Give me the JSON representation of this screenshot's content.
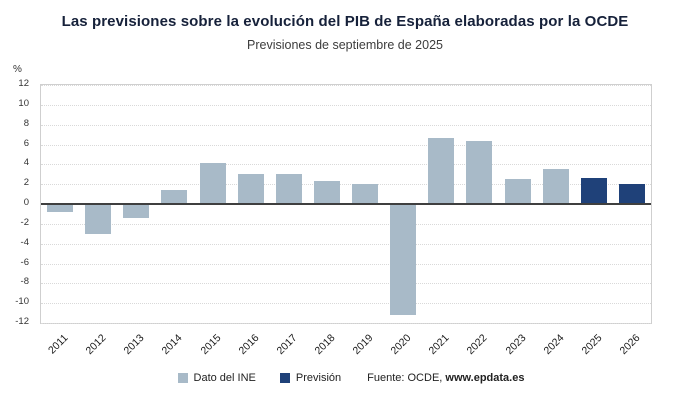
{
  "header": {
    "title": "Las previsiones sobre la evolución del PIB de España elaboradas por la OCDE",
    "subtitle": "Previsiones de septiembre de 2025"
  },
  "chart_data": {
    "type": "bar",
    "title": "Las previsiones sobre la evolución del PIB de España elaboradas por la OCDE",
    "subtitle": "Previsiones de septiembre de 2025",
    "ylabel": "%",
    "xlabel": "",
    "ylim": [
      -12,
      12
    ],
    "ytick_step": 2,
    "grid": true,
    "legend_position": "bottom",
    "categories": [
      "2011",
      "2012",
      "2013",
      "2014",
      "2015",
      "2016",
      "2017",
      "2018",
      "2019",
      "2020",
      "2021",
      "2022",
      "2023",
      "2024",
      "2025",
      "2026"
    ],
    "series": [
      {
        "name": "Dato del INE",
        "color": "#a8bac8",
        "values": [
          -0.8,
          -3.0,
          -1.4,
          1.4,
          4.1,
          3.0,
          3.0,
          2.3,
          2.0,
          -11.2,
          6.7,
          6.4,
          2.5,
          3.5,
          null,
          null
        ]
      },
      {
        "name": "Previsión",
        "color": "#1f4179",
        "values": [
          null,
          null,
          null,
          null,
          null,
          null,
          null,
          null,
          null,
          null,
          null,
          null,
          null,
          null,
          2.6,
          2.0
        ]
      }
    ]
  },
  "footer": {
    "legend": [
      {
        "label": "Dato del INE",
        "color": "#a8bac8"
      },
      {
        "label": "Previsión",
        "color": "#1f4179"
      }
    ],
    "source_prefix": "Fuente: OCDE, ",
    "source_site": "www.epdata.es"
  }
}
